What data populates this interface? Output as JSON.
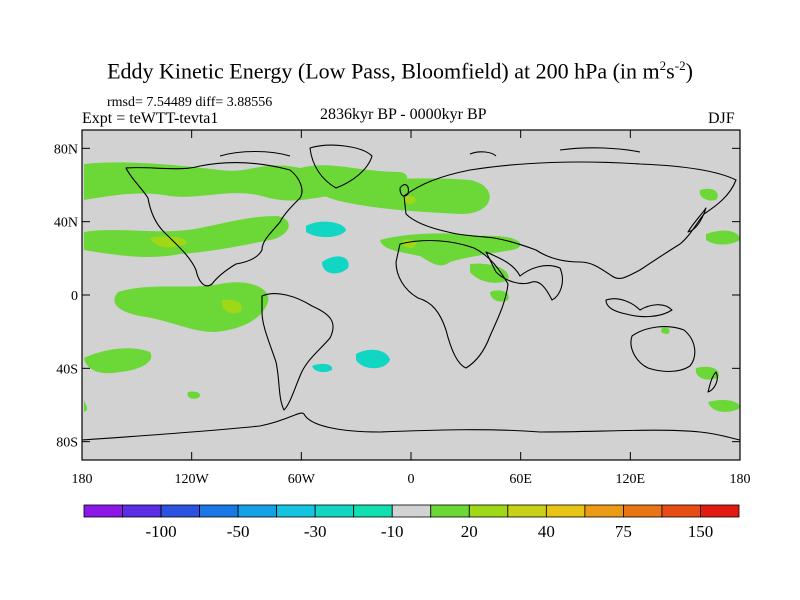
{
  "chart_data": {
    "type": "map",
    "title": "Eddy Kinetic Energy (Low Pass, Bloomfield) at 200 hPa (in m",
    "title_unit_exp1": "2",
    "title_unit_mid": "s",
    "title_unit_exp2": "-2",
    "title_close": ")",
    "stats": "rmsd= 7.54489 diff= 3.88556",
    "experiment": "Expt = teWTT-tevta1",
    "period": "2836kyr BP - 0000kyr BP",
    "season": "DJF",
    "lat_ticks": [
      "80N",
      "40N",
      "0",
      "40S",
      "80S"
    ],
    "lon_ticks": [
      "180",
      "120W",
      "60W",
      "0",
      "60E",
      "120E",
      "180"
    ],
    "colorbar": {
      "colors": [
        "#8c18e8",
        "#5a2ee6",
        "#2c52e0",
        "#1a78e6",
        "#14a0e6",
        "#14c4e0",
        "#12d6c4",
        "#10e0b0",
        "#d2d2d2",
        "#6cd838",
        "#a0d818",
        "#c8d018",
        "#e8c414",
        "#ec9a14",
        "#e87414",
        "#e64c14",
        "#e21a12"
      ],
      "labels": [
        "-100",
        "-50",
        "-30",
        "-10",
        "20",
        "40",
        "75",
        "150"
      ]
    }
  }
}
